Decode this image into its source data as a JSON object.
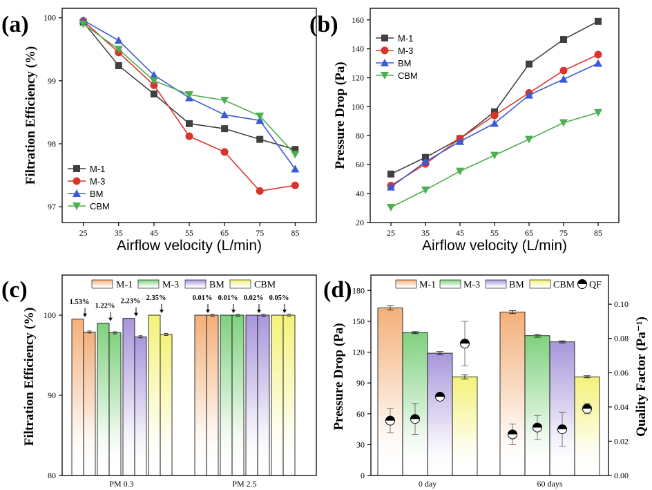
{
  "chart_data": [
    {
      "id": "a",
      "panel_label": "(a)",
      "type": "line",
      "xlabel": "Airflow velocity (L/min)",
      "ylabel": "Filtration Efficiency (%)",
      "x": [
        25,
        35,
        45,
        55,
        65,
        75,
        85
      ],
      "xlim": [
        19,
        91
      ],
      "ylim": [
        96.75,
        100.15
      ],
      "xticks": [
        "25",
        "35",
        "45",
        "55",
        "65",
        "75",
        "85"
      ],
      "yticks": [
        97,
        98,
        99,
        100
      ],
      "legend_position": "bottom-left",
      "series": [
        {
          "name": "M-1",
          "color": "#404040",
          "marker": "square",
          "values": [
            99.93,
            99.24,
            98.79,
            98.32,
            98.24,
            98.07,
            97.91
          ]
        },
        {
          "name": "M-3",
          "color": "#d9342b",
          "marker": "circle",
          "values": [
            99.95,
            99.45,
            98.93,
            98.12,
            97.87,
            97.25,
            97.34
          ]
        },
        {
          "name": "BM",
          "color": "#3b5bd6",
          "marker": "triangle-up",
          "values": [
            99.96,
            99.64,
            99.09,
            98.73,
            98.46,
            98.37,
            97.6
          ]
        },
        {
          "name": "CBM",
          "color": "#4caf50",
          "marker": "triangle-down",
          "values": [
            99.9,
            99.5,
            99.0,
            98.78,
            98.69,
            98.44,
            97.83
          ]
        }
      ]
    },
    {
      "id": "b",
      "panel_label": "(b)",
      "type": "line",
      "xlabel": "Airflow velocity (L/min)",
      "ylabel": "Pressure Drop (Pa)",
      "x": [
        25,
        35,
        45,
        55,
        65,
        75,
        85
      ],
      "xlim": [
        19,
        91
      ],
      "ylim": [
        20,
        168
      ],
      "xticks": [
        "25",
        "35",
        "45",
        "55",
        "65",
        "75",
        "85"
      ],
      "yticks": [
        20,
        40,
        60,
        80,
        100,
        120,
        140,
        160
      ],
      "legend_position": "top-left",
      "series": [
        {
          "name": "M-1",
          "color": "#404040",
          "marker": "square",
          "values": [
            53.5,
            65,
            78,
            96.5,
            129.5,
            146.5,
            159
          ]
        },
        {
          "name": "M-3",
          "color": "#d9342b",
          "marker": "circle",
          "values": [
            45.5,
            60.5,
            78,
            94,
            109.5,
            125,
            136
          ]
        },
        {
          "name": "BM",
          "color": "#3b5bd6",
          "marker": "triangle-up",
          "values": [
            44.5,
            62,
            76,
            88.5,
            108,
            119,
            130
          ]
        },
        {
          "name": "CBM",
          "color": "#4caf50",
          "marker": "triangle-down",
          "values": [
            30.5,
            42.5,
            55.5,
            66.5,
            77.5,
            89,
            96
          ]
        }
      ]
    },
    {
      "id": "c",
      "panel_label": "(c)",
      "type": "bar",
      "xlabel": "",
      "ylabel": "Filtration Efficiency (%)",
      "categories": [
        "PM 0.3",
        "PM 2.5"
      ],
      "ylim": [
        80,
        105
      ],
      "yticks": [
        80,
        90,
        100
      ],
      "legend_position": "top",
      "series": [
        {
          "name": "M-1",
          "color": "#f3b07a",
          "initial": [
            99.5,
            100
          ],
          "after": [
            97.9,
            100
          ]
        },
        {
          "name": "M-3",
          "color": "#7fd17f",
          "initial": [
            99.0,
            100
          ],
          "after": [
            97.8,
            100
          ]
        },
        {
          "name": "BM",
          "color": "#a896db",
          "initial": [
            99.6,
            100
          ],
          "after": [
            97.3,
            100
          ]
        },
        {
          "name": "CBM",
          "color": "#f4f27a",
          "initial": [
            100.0,
            100
          ],
          "after": [
            97.6,
            100
          ]
        }
      ],
      "annotations": [
        [
          "1.53%",
          "1.22%",
          "2.23%",
          "2.35%"
        ],
        [
          "0.01%",
          "0.01%",
          "0.02%",
          "0.05%"
        ]
      ]
    },
    {
      "id": "d",
      "panel_label": "(d)",
      "type": "bar",
      "xlabel": "",
      "ylabel": "Pressure Drop (Pa)",
      "y2label": "Quality Factor (Pa⁻¹)",
      "categories": [
        "0 day",
        "60 days"
      ],
      "ylim": [
        0,
        195
      ],
      "yticks": [
        0,
        30,
        60,
        90,
        120,
        150,
        180
      ],
      "y2lim": [
        0,
        0.117
      ],
      "y2ticks": [
        "0.00",
        "0.02",
        "0.04",
        "0.06",
        "0.08",
        "0.10"
      ],
      "legend_position": "top",
      "series": [
        {
          "name": "M-1",
          "color": "#f3b07a",
          "values": [
            163,
            159
          ],
          "err": [
            2,
            1.5
          ],
          "qf": [
            0.032,
            0.024
          ],
          "qf_err": [
            0.007,
            0.006
          ]
        },
        {
          "name": "M-3",
          "color": "#7fd17f",
          "values": [
            139,
            136
          ],
          "err": [
            1,
            1.5
          ],
          "qf": [
            0.033,
            0.028
          ],
          "qf_err": [
            0.009,
            0.007
          ]
        },
        {
          "name": "BM",
          "color": "#a896db",
          "values": [
            119,
            130
          ],
          "err": [
            1.5,
            1
          ],
          "qf": [
            0.046,
            0.027
          ],
          "qf_err": [
            0,
            0.01
          ]
        },
        {
          "name": "CBM",
          "color": "#f4f27a",
          "values": [
            96,
            96
          ],
          "err": [
            2,
            1
          ],
          "qf": [
            0.077,
            0.039
          ],
          "qf_err": [
            0.013,
            0.003
          ]
        }
      ],
      "qf_legend": "QF"
    }
  ]
}
